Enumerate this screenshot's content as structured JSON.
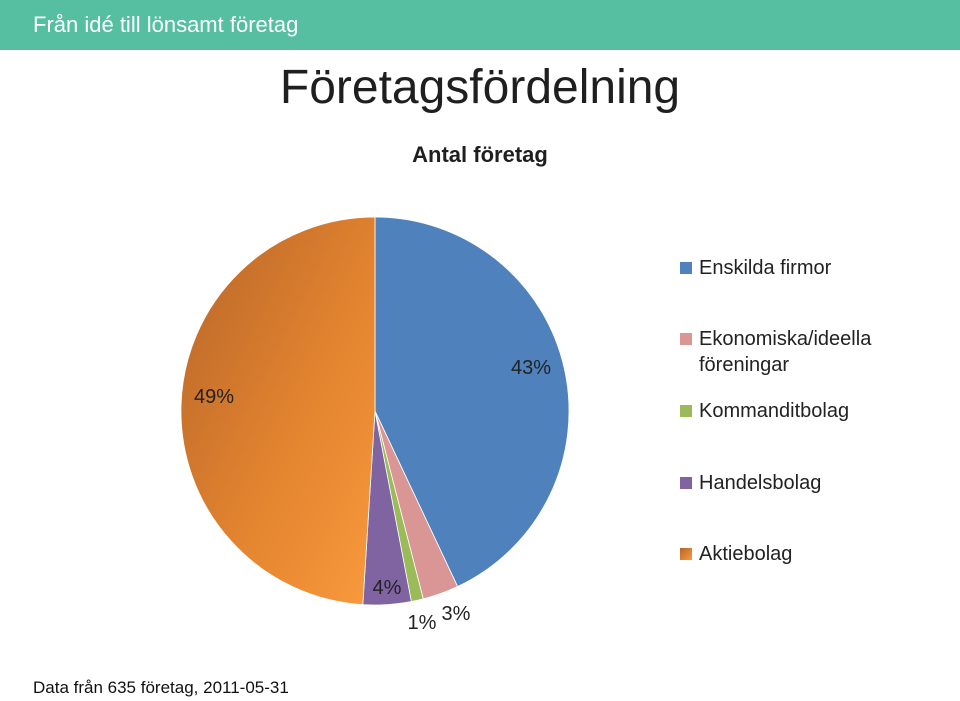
{
  "header": {
    "banner_title": "Från idé till lönsamt företag"
  },
  "slide_title": "Företagsfördelning",
  "footer": "Data från  635 företag, 2011-05-31",
  "chart_data": {
    "type": "pie",
    "title": "Antal företag",
    "legend_position": "right",
    "series": [
      {
        "name": "Enskilda firmor",
        "value": 43,
        "label": "43%",
        "color": "#4f81bd"
      },
      {
        "name": "Ekonomiska/ideella föreningar",
        "value": 3,
        "label": "3%",
        "color": "#d99694"
      },
      {
        "name": "Kommanditbolag",
        "value": 1,
        "label": "1%",
        "color": "#9bbb59"
      },
      {
        "name": "Handelsbolag",
        "value": 4,
        "label": "4%",
        "color": "#8064a2"
      },
      {
        "name": "Aktiebolag",
        "value": 49,
        "label": "49%",
        "color": "#e67e22"
      }
    ]
  }
}
